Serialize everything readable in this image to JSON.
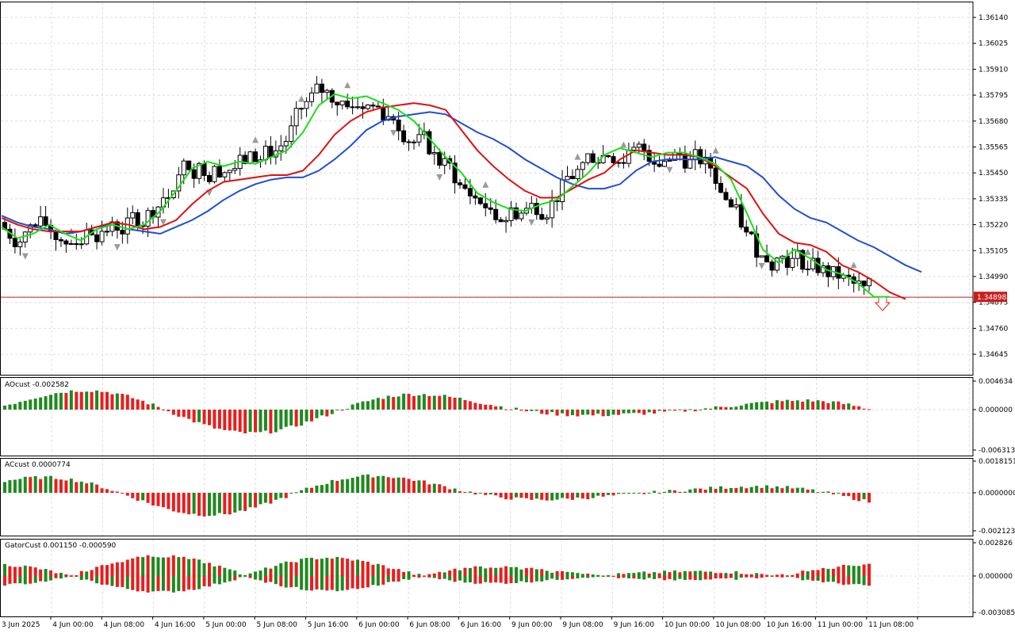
{
  "colors": {
    "background": "#ffffff",
    "grid": "#dcdcdc",
    "candle": "#000000",
    "jaw": "#1f4fd1",
    "teeth": "#e01010",
    "lips": "#18e018",
    "bar_up": "#1e8a1e",
    "bar_down": "#e81e1e",
    "price_line": "#c81e1e",
    "fractal": "#9a9a9a"
  },
  "chart_data": [
    {
      "panel": "price",
      "type": "candlestick",
      "y_ticks": [
        "1.36140",
        "1.36025",
        "1.35910",
        "1.35795",
        "1.35680",
        "1.35565",
        "1.35450",
        "1.35335",
        "1.35220",
        "1.35105",
        "1.34990",
        "1.34875",
        "1.34760",
        "1.34645"
      ],
      "ylim": [
        1.3459,
        1.3618
      ],
      "current_price": "1.34898",
      "x_ticks": [
        "3 Jun 2025",
        "4 Jun 00:00",
        "4 Jun 08:00",
        "4 Jun 16:00",
        "5 Jun 00:00",
        "5 Jun 08:00",
        "5 Jun 16:00",
        "6 Jun 00:00",
        "6 Jun 08:00",
        "6 Jun 16:00",
        "9 Jun 00:00",
        "9 Jun 08:00",
        "9 Jun 16:00",
        "10 Jun 00:00",
        "10 Jun 08:00",
        "10 Jun 16:00",
        "11 Jun 00:00",
        "11 Jun 08:00"
      ],
      "series": [
        {
          "name": "Jaw",
          "color_key": "jaw",
          "values": [
            [
              0,
              1.3526
            ],
            [
              20,
              1.3523
            ],
            [
              40,
              1.3521
            ],
            [
              60,
              1.352
            ],
            [
              80,
              1.3518
            ],
            [
              100,
              1.3519
            ],
            [
              120,
              1.3521
            ],
            [
              140,
              1.3522
            ],
            [
              160,
              1.352
            ],
            [
              180,
              1.3519
            ],
            [
              200,
              1.3518
            ],
            [
              220,
              1.3521
            ],
            [
              240,
              1.3524
            ],
            [
              260,
              1.3528
            ],
            [
              280,
              1.3533
            ],
            [
              300,
              1.3537
            ],
            [
              320,
              1.354
            ],
            [
              340,
              1.3542
            ],
            [
              360,
              1.3543
            ],
            [
              380,
              1.3543
            ],
            [
              400,
              1.3546
            ],
            [
              420,
              1.3551
            ],
            [
              440,
              1.3557
            ],
            [
              460,
              1.3564
            ],
            [
              480,
              1.3568
            ],
            [
              500,
              1.357
            ],
            [
              520,
              1.3571
            ],
            [
              540,
              1.3572
            ],
            [
              560,
              1.3571
            ],
            [
              580,
              1.3567
            ],
            [
              600,
              1.3563
            ],
            [
              620,
              1.356
            ],
            [
              640,
              1.3556
            ],
            [
              660,
              1.3551
            ],
            [
              680,
              1.3547
            ],
            [
              700,
              1.3543
            ],
            [
              720,
              1.354
            ],
            [
              740,
              1.3538
            ],
            [
              760,
              1.3538
            ],
            [
              780,
              1.354
            ],
            [
              800,
              1.3546
            ],
            [
              820,
              1.355
            ],
            [
              840,
              1.3551
            ],
            [
              860,
              1.3551
            ],
            [
              880,
              1.3551
            ],
            [
              900,
              1.3552
            ],
            [
              920,
              1.355
            ],
            [
              940,
              1.3548
            ],
            [
              960,
              1.3543
            ],
            [
              980,
              1.3535
            ],
            [
              1000,
              1.3529
            ],
            [
              1020,
              1.3525
            ],
            [
              1040,
              1.3523
            ],
            [
              1060,
              1.3519
            ],
            [
              1080,
              1.3515
            ],
            [
              1100,
              1.3512
            ],
            [
              1120,
              1.3508
            ],
            [
              1140,
              1.3504
            ],
            [
              1160,
              1.3501
            ]
          ]
        },
        {
          "name": "Teeth",
          "color_key": "teeth",
          "values": [
            [
              0,
              1.3525
            ],
            [
              20,
              1.3522
            ],
            [
              40,
              1.352
            ],
            [
              60,
              1.3519
            ],
            [
              80,
              1.3519
            ],
            [
              100,
              1.3519
            ],
            [
              120,
              1.3521
            ],
            [
              140,
              1.3523
            ],
            [
              160,
              1.3522
            ],
            [
              180,
              1.352
            ],
            [
              200,
              1.3521
            ],
            [
              220,
              1.3524
            ],
            [
              240,
              1.3531
            ],
            [
              260,
              1.3537
            ],
            [
              280,
              1.3541
            ],
            [
              300,
              1.3542
            ],
            [
              320,
              1.3543
            ],
            [
              340,
              1.3544
            ],
            [
              360,
              1.3544
            ],
            [
              380,
              1.3546
            ],
            [
              400,
              1.3553
            ],
            [
              420,
              1.3562
            ],
            [
              440,
              1.3568
            ],
            [
              460,
              1.3572
            ],
            [
              480,
              1.3574
            ],
            [
              500,
              1.3575
            ],
            [
              520,
              1.3576
            ],
            [
              540,
              1.3575
            ],
            [
              560,
              1.3573
            ],
            [
              580,
              1.3564
            ],
            [
              600,
              1.3555
            ],
            [
              620,
              1.3548
            ],
            [
              640,
              1.3542
            ],
            [
              660,
              1.3537
            ],
            [
              680,
              1.3534
            ],
            [
              700,
              1.3534
            ],
            [
              720,
              1.3538
            ],
            [
              740,
              1.3542
            ],
            [
              760,
              1.3545
            ],
            [
              780,
              1.3551
            ],
            [
              800,
              1.3555
            ],
            [
              820,
              1.3554
            ],
            [
              840,
              1.3553
            ],
            [
              860,
              1.3553
            ],
            [
              880,
              1.3552
            ],
            [
              900,
              1.3548
            ],
            [
              920,
              1.3543
            ],
            [
              940,
              1.3538
            ],
            [
              960,
              1.3527
            ],
            [
              980,
              1.3518
            ],
            [
              1000,
              1.3514
            ],
            [
              1020,
              1.3513
            ],
            [
              1040,
              1.351
            ],
            [
              1060,
              1.3504
            ],
            [
              1080,
              1.3501
            ],
            [
              1100,
              1.3497
            ],
            [
              1120,
              1.3492
            ],
            [
              1140,
              1.3489
            ]
          ]
        },
        {
          "name": "Lips",
          "color_key": "lips",
          "values": [
            [
              0,
              1.3521
            ],
            [
              20,
              1.3516
            ],
            [
              40,
              1.3518
            ],
            [
              60,
              1.3522
            ],
            [
              80,
              1.3518
            ],
            [
              100,
              1.3515
            ],
            [
              120,
              1.352
            ],
            [
              140,
              1.3522
            ],
            [
              160,
              1.352
            ],
            [
              180,
              1.3522
            ],
            [
              200,
              1.3528
            ],
            [
              220,
              1.3537
            ],
            [
              240,
              1.3547
            ],
            [
              260,
              1.355
            ],
            [
              280,
              1.3548
            ],
            [
              300,
              1.355
            ],
            [
              320,
              1.3549
            ],
            [
              340,
              1.3552
            ],
            [
              360,
              1.3555
            ],
            [
              380,
              1.3563
            ],
            [
              400,
              1.3575
            ],
            [
              420,
              1.358
            ],
            [
              440,
              1.3578
            ],
            [
              460,
              1.3579
            ],
            [
              480,
              1.3576
            ],
            [
              500,
              1.3573
            ],
            [
              520,
              1.3568
            ],
            [
              540,
              1.356
            ],
            [
              560,
              1.3552
            ],
            [
              580,
              1.3545
            ],
            [
              600,
              1.3536
            ],
            [
              620,
              1.3532
            ],
            [
              640,
              1.3529
            ],
            [
              660,
              1.3528
            ],
            [
              680,
              1.3531
            ],
            [
              700,
              1.3533
            ],
            [
              720,
              1.3539
            ],
            [
              740,
              1.3545
            ],
            [
              760,
              1.3553
            ],
            [
              780,
              1.3556
            ],
            [
              800,
              1.3554
            ],
            [
              820,
              1.3552
            ],
            [
              840,
              1.3554
            ],
            [
              860,
              1.3554
            ],
            [
              880,
              1.3552
            ],
            [
              900,
              1.3549
            ],
            [
              920,
              1.3542
            ],
            [
              940,
              1.3527
            ],
            [
              960,
              1.3511
            ],
            [
              980,
              1.3505
            ],
            [
              1000,
              1.3511
            ],
            [
              1020,
              1.3507
            ],
            [
              1040,
              1.3502
            ],
            [
              1060,
              1.35
            ],
            [
              1080,
              1.3496
            ],
            [
              1100,
              1.349
            ],
            [
              1120,
              1.349
            ]
          ]
        }
      ]
    },
    {
      "panel": "AOcust",
      "type": "bar",
      "label": "AOcust -0.002582",
      "y_ticks": [
        "0.004634",
        "0.000000",
        "-0.006313"
      ]
    },
    {
      "panel": "ACcust",
      "type": "bar",
      "label": "ACcust 0.0000774",
      "y_ticks": [
        "0.0018151",
        "0.0000000",
        "-0.0021231"
      ]
    },
    {
      "panel": "GatorCust",
      "type": "bar",
      "label": "GatorCust 0.001150 -0.000590",
      "y_ticks": [
        "0.002826",
        "0.000000",
        "-0.003085"
      ]
    }
  ]
}
